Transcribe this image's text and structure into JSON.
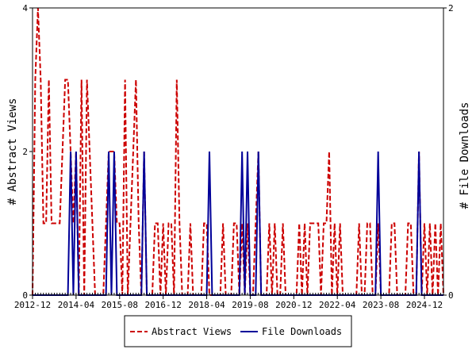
{
  "chart_data": {
    "type": "line",
    "title": "",
    "xlabel": "",
    "ylabel_left": "# Abstract Views",
    "ylabel_right": "# File Downloads",
    "x_start": "2012-12",
    "x_end": "2025-07",
    "x_tick_labels": [
      "2012-12",
      "2014-04",
      "2015-08",
      "2016-12",
      "2018-04",
      "2019-08",
      "2020-12",
      "2022-04",
      "2023-08",
      "2024-12"
    ],
    "ylim_left": [
      0,
      4
    ],
    "ylim_right": [
      0,
      2
    ],
    "yticks_left": [
      "0",
      "2",
      "4"
    ],
    "yticks_right": [
      "0",
      "2"
    ],
    "grid": false,
    "legend_position": "bottom",
    "series": [
      {
        "name": "Abstract Views",
        "axis": "left",
        "color": "#cc0000",
        "style": "dashed",
        "points": [
          [
            "2012-12",
            0
          ],
          [
            "2013-01",
            3
          ],
          [
            "2013-02",
            4
          ],
          [
            "2013-03",
            3
          ],
          [
            "2013-04",
            1
          ],
          [
            "2013-05",
            1
          ],
          [
            "2013-06",
            3
          ],
          [
            "2013-07",
            1
          ],
          [
            "2013-08",
            1
          ],
          [
            "2013-09",
            1
          ],
          [
            "2013-10",
            1
          ],
          [
            "2013-11",
            2
          ],
          [
            "2013-12",
            3
          ],
          [
            "2014-01",
            3
          ],
          [
            "2014-02",
            2
          ],
          [
            "2014-03",
            1
          ],
          [
            "2014-04",
            2
          ],
          [
            "2014-05",
            0
          ],
          [
            "2014-06",
            3
          ],
          [
            "2014-07",
            0
          ],
          [
            "2014-08",
            3
          ],
          [
            "2014-09",
            2
          ],
          [
            "2014-10",
            1
          ],
          [
            "2014-11",
            0
          ],
          [
            "2014-12",
            0
          ],
          [
            "2015-01",
            0
          ],
          [
            "2015-02",
            0
          ],
          [
            "2015-03",
            1
          ],
          [
            "2015-04",
            2
          ],
          [
            "2015-05",
            2
          ],
          [
            "2015-06",
            2
          ],
          [
            "2015-07",
            1
          ],
          [
            "2015-08",
            1
          ],
          [
            "2015-09",
            0
          ],
          [
            "2015-10",
            3
          ],
          [
            "2015-11",
            0
          ],
          [
            "2015-12",
            1
          ],
          [
            "2016-01",
            2
          ],
          [
            "2016-02",
            3
          ],
          [
            "2016-03",
            1
          ],
          [
            "2016-04",
            0
          ],
          [
            "2016-05",
            2
          ],
          [
            "2016-06",
            0
          ],
          [
            "2016-07",
            0
          ],
          [
            "2016-08",
            0
          ],
          [
            "2016-09",
            1
          ],
          [
            "2016-10",
            1
          ],
          [
            "2016-11",
            0
          ],
          [
            "2016-12",
            1
          ],
          [
            "2017-01",
            0
          ],
          [
            "2017-02",
            1
          ],
          [
            "2017-03",
            1
          ],
          [
            "2017-04",
            0
          ],
          [
            "2017-05",
            3
          ],
          [
            "2017-06",
            1
          ],
          [
            "2017-07",
            0
          ],
          [
            "2017-08",
            0
          ],
          [
            "2017-09",
            0
          ],
          [
            "2017-10",
            1
          ],
          [
            "2017-11",
            0
          ],
          [
            "2017-12",
            0
          ],
          [
            "2018-01",
            0
          ],
          [
            "2018-02",
            0
          ],
          [
            "2018-03",
            1
          ],
          [
            "2018-04",
            1
          ],
          [
            "2018-05",
            0
          ],
          [
            "2018-06",
            0
          ],
          [
            "2018-07",
            0
          ],
          [
            "2018-08",
            0
          ],
          [
            "2018-09",
            0
          ],
          [
            "2018-10",
            1
          ],
          [
            "2018-11",
            0
          ],
          [
            "2018-12",
            0
          ],
          [
            "2019-01",
            0
          ],
          [
            "2019-02",
            1
          ],
          [
            "2019-03",
            1
          ],
          [
            "2019-04",
            0
          ],
          [
            "2019-05",
            1
          ],
          [
            "2019-06",
            0
          ],
          [
            "2019-07",
            1
          ],
          [
            "2019-08",
            0
          ],
          [
            "2019-09",
            0
          ],
          [
            "2019-10",
            1
          ],
          [
            "2019-11",
            2
          ],
          [
            "2019-12",
            0
          ],
          [
            "2020-01",
            0
          ],
          [
            "2020-02",
            0
          ],
          [
            "2020-03",
            1
          ],
          [
            "2020-04",
            0
          ],
          [
            "2020-05",
            1
          ],
          [
            "2020-06",
            0
          ],
          [
            "2020-07",
            0
          ],
          [
            "2020-08",
            1
          ],
          [
            "2020-09",
            0
          ],
          [
            "2020-10",
            0
          ],
          [
            "2020-11",
            0
          ],
          [
            "2020-12",
            0
          ],
          [
            "2021-01",
            0
          ],
          [
            "2021-02",
            1
          ],
          [
            "2021-03",
            0
          ],
          [
            "2021-04",
            1
          ],
          [
            "2021-05",
            0
          ],
          [
            "2021-06",
            1
          ],
          [
            "2021-07",
            1
          ],
          [
            "2021-08",
            1
          ],
          [
            "2021-09",
            1
          ],
          [
            "2021-10",
            0
          ],
          [
            "2021-11",
            1
          ],
          [
            "2021-12",
            1
          ],
          [
            "2022-01",
            2
          ],
          [
            "2022-02",
            0
          ],
          [
            "2022-03",
            1
          ],
          [
            "2022-04",
            0
          ],
          [
            "2022-05",
            1
          ],
          [
            "2022-06",
            0
          ],
          [
            "2022-07",
            0
          ],
          [
            "2022-08",
            0
          ],
          [
            "2022-09",
            0
          ],
          [
            "2022-10",
            0
          ],
          [
            "2022-11",
            0
          ],
          [
            "2022-12",
            1
          ],
          [
            "2023-01",
            0
          ],
          [
            "2023-02",
            0
          ],
          [
            "2023-03",
            1
          ],
          [
            "2023-04",
            1
          ],
          [
            "2023-05",
            0
          ],
          [
            "2023-06",
            0
          ],
          [
            "2023-07",
            1
          ],
          [
            "2023-08",
            0
          ],
          [
            "2023-09",
            0
          ],
          [
            "2023-10",
            0
          ],
          [
            "2023-11",
            0
          ],
          [
            "2023-12",
            1
          ],
          [
            "2024-01",
            1
          ],
          [
            "2024-02",
            0
          ],
          [
            "2024-03",
            0
          ],
          [
            "2024-04",
            0
          ],
          [
            "2024-05",
            0
          ],
          [
            "2024-06",
            1
          ],
          [
            "2024-07",
            1
          ],
          [
            "2024-08",
            0
          ],
          [
            "2024-09",
            0
          ],
          [
            "2024-10",
            2
          ],
          [
            "2024-11",
            0
          ],
          [
            "2024-12",
            1
          ],
          [
            "2025-01",
            0
          ],
          [
            "2025-02",
            1
          ],
          [
            "2025-03",
            0
          ],
          [
            "2025-04",
            1
          ],
          [
            "2025-05",
            0
          ],
          [
            "2025-06",
            1
          ],
          [
            "2025-07",
            0
          ]
        ]
      },
      {
        "name": "File Downloads",
        "axis": "right",
        "color": "#000099",
        "style": "solid",
        "points": [
          [
            "2012-12",
            0
          ],
          [
            "2013-01",
            0
          ],
          [
            "2013-02",
            0
          ],
          [
            "2013-03",
            0
          ],
          [
            "2013-04",
            0
          ],
          [
            "2013-05",
            0
          ],
          [
            "2013-06",
            0
          ],
          [
            "2013-07",
            0
          ],
          [
            "2013-08",
            0
          ],
          [
            "2013-09",
            0
          ],
          [
            "2013-10",
            0
          ],
          [
            "2013-11",
            0
          ],
          [
            "2013-12",
            0
          ],
          [
            "2014-01",
            0
          ],
          [
            "2014-02",
            1
          ],
          [
            "2014-03",
            0
          ],
          [
            "2014-04",
            1
          ],
          [
            "2014-05",
            0
          ],
          [
            "2014-06",
            0
          ],
          [
            "2014-07",
            0
          ],
          [
            "2014-08",
            0
          ],
          [
            "2014-09",
            0
          ],
          [
            "2014-10",
            0
          ],
          [
            "2014-11",
            0
          ],
          [
            "2014-12",
            0
          ],
          [
            "2015-01",
            0
          ],
          [
            "2015-02",
            0
          ],
          [
            "2015-03",
            0
          ],
          [
            "2015-04",
            1
          ],
          [
            "2015-05",
            0
          ],
          [
            "2015-06",
            1
          ],
          [
            "2015-07",
            0
          ],
          [
            "2015-08",
            0
          ],
          [
            "2015-09",
            0
          ],
          [
            "2015-10",
            0
          ],
          [
            "2015-11",
            0
          ],
          [
            "2015-12",
            0
          ],
          [
            "2016-01",
            0
          ],
          [
            "2016-02",
            0
          ],
          [
            "2016-03",
            0
          ],
          [
            "2016-04",
            0
          ],
          [
            "2016-05",
            1
          ],
          [
            "2016-06",
            0
          ],
          [
            "2016-07",
            0
          ],
          [
            "2016-08",
            0
          ],
          [
            "2016-09",
            0
          ],
          [
            "2016-10",
            0
          ],
          [
            "2016-11",
            0
          ],
          [
            "2016-12",
            0
          ],
          [
            "2017-01",
            0
          ],
          [
            "2017-02",
            0
          ],
          [
            "2017-03",
            0
          ],
          [
            "2017-04",
            0
          ],
          [
            "2017-05",
            0
          ],
          [
            "2017-06",
            0
          ],
          [
            "2017-07",
            0
          ],
          [
            "2017-08",
            0
          ],
          [
            "2017-09",
            0
          ],
          [
            "2017-10",
            0
          ],
          [
            "2017-11",
            0
          ],
          [
            "2017-12",
            0
          ],
          [
            "2018-01",
            0
          ],
          [
            "2018-02",
            0
          ],
          [
            "2018-03",
            0
          ],
          [
            "2018-04",
            0
          ],
          [
            "2018-05",
            1
          ],
          [
            "2018-06",
            0
          ],
          [
            "2018-07",
            0
          ],
          [
            "2018-08",
            0
          ],
          [
            "2018-09",
            0
          ],
          [
            "2018-10",
            0
          ],
          [
            "2018-11",
            0
          ],
          [
            "2018-12",
            0
          ],
          [
            "2019-01",
            0
          ],
          [
            "2019-02",
            0
          ],
          [
            "2019-03",
            0
          ],
          [
            "2019-04",
            0
          ],
          [
            "2019-05",
            1
          ],
          [
            "2019-06",
            0
          ],
          [
            "2019-07",
            1
          ],
          [
            "2019-08",
            0
          ],
          [
            "2019-09",
            0
          ],
          [
            "2019-10",
            0
          ],
          [
            "2019-11",
            1
          ],
          [
            "2019-12",
            0
          ],
          [
            "2020-01",
            0
          ],
          [
            "2020-02",
            0
          ],
          [
            "2020-03",
            0
          ],
          [
            "2020-04",
            0
          ],
          [
            "2020-05",
            0
          ],
          [
            "2020-06",
            0
          ],
          [
            "2020-07",
            0
          ],
          [
            "2020-08",
            0
          ],
          [
            "2020-09",
            0
          ],
          [
            "2020-10",
            0
          ],
          [
            "2020-11",
            0
          ],
          [
            "2020-12",
            0
          ],
          [
            "2021-01",
            0
          ],
          [
            "2021-02",
            0
          ],
          [
            "2021-03",
            0
          ],
          [
            "2021-04",
            0
          ],
          [
            "2021-05",
            0
          ],
          [
            "2021-06",
            0
          ],
          [
            "2021-07",
            0
          ],
          [
            "2021-08",
            0
          ],
          [
            "2021-09",
            0
          ],
          [
            "2021-10",
            0
          ],
          [
            "2021-11",
            0
          ],
          [
            "2021-12",
            0
          ],
          [
            "2022-01",
            0
          ],
          [
            "2022-02",
            0
          ],
          [
            "2022-03",
            0
          ],
          [
            "2022-04",
            0
          ],
          [
            "2022-05",
            0
          ],
          [
            "2022-06",
            0
          ],
          [
            "2022-07",
            0
          ],
          [
            "2022-08",
            0
          ],
          [
            "2022-09",
            0
          ],
          [
            "2022-10",
            0
          ],
          [
            "2022-11",
            0
          ],
          [
            "2022-12",
            0
          ],
          [
            "2023-01",
            0
          ],
          [
            "2023-02",
            0
          ],
          [
            "2023-03",
            0
          ],
          [
            "2023-04",
            0
          ],
          [
            "2023-05",
            0
          ],
          [
            "2023-06",
            0
          ],
          [
            "2023-07",
            1
          ],
          [
            "2023-08",
            0
          ],
          [
            "2023-09",
            0
          ],
          [
            "2023-10",
            0
          ],
          [
            "2023-11",
            0
          ],
          [
            "2023-12",
            0
          ],
          [
            "2024-01",
            0
          ],
          [
            "2024-02",
            0
          ],
          [
            "2024-03",
            0
          ],
          [
            "2024-04",
            0
          ],
          [
            "2024-05",
            0
          ],
          [
            "2024-06",
            0
          ],
          [
            "2024-07",
            0
          ],
          [
            "2024-08",
            0
          ],
          [
            "2024-09",
            0
          ],
          [
            "2024-10",
            1
          ],
          [
            "2024-11",
            0
          ],
          [
            "2024-12",
            0
          ],
          [
            "2025-01",
            0
          ],
          [
            "2025-02",
            0
          ],
          [
            "2025-03",
            0
          ],
          [
            "2025-04",
            0
          ],
          [
            "2025-05",
            0
          ],
          [
            "2025-06",
            0
          ],
          [
            "2025-07",
            0
          ]
        ]
      }
    ]
  }
}
